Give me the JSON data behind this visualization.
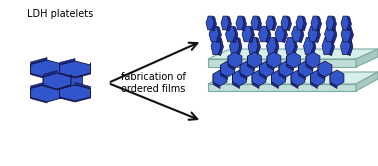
{
  "bg_color": "#ffffff",
  "blue_face": "#3355cc",
  "blue_side": "#1a2d99",
  "blue_light": "#5577ee",
  "teal_top": "#d8eeea",
  "teal_front": "#c0ddd8",
  "teal_right": "#a8c8c4",
  "teal_outline": "#7aaa9f",
  "label_ldh": "LDH platelets",
  "label_fab": "fabrication of\nordered films",
  "label_fontsize": 7.0,
  "arrow_color": "#111111"
}
